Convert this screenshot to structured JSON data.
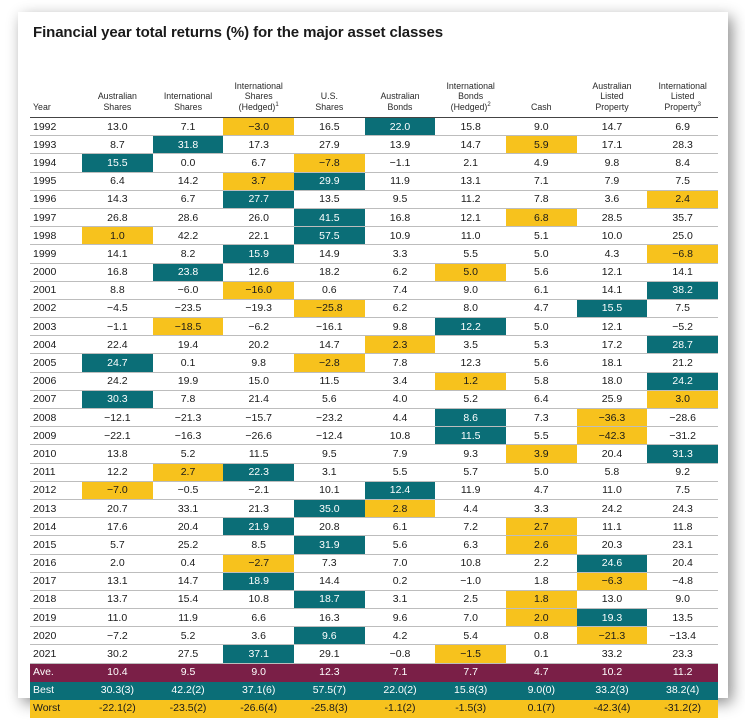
{
  "title": "Financial year total returns (%) for the major asset classes",
  "headers": [
    {
      "lines": [
        "Year"
      ],
      "sup": ""
    },
    {
      "lines": [
        "Australian",
        "Shares"
      ],
      "sup": ""
    },
    {
      "lines": [
        "International",
        "Shares"
      ],
      "sup": ""
    },
    {
      "lines": [
        "International",
        "Shares",
        "(Hedged)"
      ],
      "sup": "1"
    },
    {
      "lines": [
        "U.S.",
        "Shares"
      ],
      "sup": ""
    },
    {
      "lines": [
        "Australian",
        "Bonds"
      ],
      "sup": ""
    },
    {
      "lines": [
        "International",
        "Bonds",
        "(Hedged)"
      ],
      "sup": "2"
    },
    {
      "lines": [
        "Cash"
      ],
      "sup": ""
    },
    {
      "lines": [
        "Australian",
        "Listed",
        "Property"
      ],
      "sup": ""
    },
    {
      "lines": [
        "International",
        "Listed",
        "Property"
      ],
      "sup": "3"
    }
  ],
  "colors": {
    "best": "#0b6e77",
    "worst": "#f7c21d",
    "average": "#7a1f47"
  },
  "rows": [
    {
      "year": "1992",
      "values": [
        "13.0",
        "7.1",
        "−3.0",
        "16.5",
        "22.0",
        "15.8",
        "9.0",
        "14.7",
        "6.9"
      ],
      "best": 4,
      "worst": 2
    },
    {
      "year": "1993",
      "values": [
        "8.7",
        "31.8",
        "17.3",
        "27.9",
        "13.9",
        "14.7",
        "5.9",
        "17.1",
        "28.3"
      ],
      "best": 1,
      "worst": 6
    },
    {
      "year": "1994",
      "values": [
        "15.5",
        "0.0",
        "6.7",
        "−7.8",
        "−1.1",
        "2.1",
        "4.9",
        "9.8",
        "8.4"
      ],
      "best": 0,
      "worst": 3
    },
    {
      "year": "1995",
      "values": [
        "6.4",
        "14.2",
        "3.7",
        "29.9",
        "11.9",
        "13.1",
        "7.1",
        "7.9",
        "7.5"
      ],
      "best": 3,
      "worst": 2
    },
    {
      "year": "1996",
      "values": [
        "14.3",
        "6.7",
        "27.7",
        "13.5",
        "9.5",
        "11.2",
        "7.8",
        "3.6",
        "2.4"
      ],
      "best": 2,
      "worst": 8
    },
    {
      "year": "1997",
      "values": [
        "26.8",
        "28.6",
        "26.0",
        "41.5",
        "16.8",
        "12.1",
        "6.8",
        "28.5",
        "35.7"
      ],
      "best": 3,
      "worst": 6
    },
    {
      "year": "1998",
      "values": [
        "1.0",
        "42.2",
        "22.1",
        "57.5",
        "10.9",
        "11.0",
        "5.1",
        "10.0",
        "25.0"
      ],
      "best": 3,
      "worst": 0
    },
    {
      "year": "1999",
      "values": [
        "14.1",
        "8.2",
        "15.9",
        "14.9",
        "3.3",
        "5.5",
        "5.0",
        "4.3",
        "−6.8"
      ],
      "best": 2,
      "worst": 8
    },
    {
      "year": "2000",
      "values": [
        "16.8",
        "23.8",
        "12.6",
        "18.2",
        "6.2",
        "5.0",
        "5.6",
        "12.1",
        "14.1"
      ],
      "best": 1,
      "worst": 5
    },
    {
      "year": "2001",
      "values": [
        "8.8",
        "−6.0",
        "−16.0",
        "0.6",
        "7.4",
        "9.0",
        "6.1",
        "14.1",
        "38.2"
      ],
      "best": 8,
      "worst": 2
    },
    {
      "year": "2002",
      "values": [
        "−4.5",
        "−23.5",
        "−19.3",
        "−25.8",
        "6.2",
        "8.0",
        "4.7",
        "15.5",
        "7.5"
      ],
      "best": 7,
      "worst": 3
    },
    {
      "year": "2003",
      "values": [
        "−1.1",
        "−18.5",
        "−6.2",
        "−16.1",
        "9.8",
        "12.2",
        "5.0",
        "12.1",
        "−5.2"
      ],
      "best": 5,
      "worst": 1
    },
    {
      "year": "2004",
      "values": [
        "22.4",
        "19.4",
        "20.2",
        "14.7",
        "2.3",
        "3.5",
        "5.3",
        "17.2",
        "28.7"
      ],
      "best": 8,
      "worst": 4
    },
    {
      "year": "2005",
      "values": [
        "24.7",
        "0.1",
        "9.8",
        "−2.8",
        "7.8",
        "12.3",
        "5.6",
        "18.1",
        "21.2"
      ],
      "best": 0,
      "worst": 3
    },
    {
      "year": "2006",
      "values": [
        "24.2",
        "19.9",
        "15.0",
        "11.5",
        "3.4",
        "1.2",
        "5.8",
        "18.0",
        "24.2"
      ],
      "best": 8,
      "worst": 5
    },
    {
      "year": "2007",
      "values": [
        "30.3",
        "7.8",
        "21.4",
        "5.6",
        "4.0",
        "5.2",
        "6.4",
        "25.9",
        "3.0"
      ],
      "best": 0,
      "worst": 8
    },
    {
      "year": "2008",
      "values": [
        "−12.1",
        "−21.3",
        "−15.7",
        "−23.2",
        "4.4",
        "8.6",
        "7.3",
        "−36.3",
        "−28.6"
      ],
      "best": 5,
      "worst": 7
    },
    {
      "year": "2009",
      "values": [
        "−22.1",
        "−16.3",
        "−26.6",
        "−12.4",
        "10.8",
        "11.5",
        "5.5",
        "−42.3",
        "−31.2"
      ],
      "best": 5,
      "worst": 7
    },
    {
      "year": "2010",
      "values": [
        "13.8",
        "5.2",
        "11.5",
        "9.5",
        "7.9",
        "9.3",
        "3.9",
        "20.4",
        "31.3"
      ],
      "best": 8,
      "worst": 6
    },
    {
      "year": "2011",
      "values": [
        "12.2",
        "2.7",
        "22.3",
        "3.1",
        "5.5",
        "5.7",
        "5.0",
        "5.8",
        "9.2"
      ],
      "best": 2,
      "worst": 1
    },
    {
      "year": "2012",
      "values": [
        "−7.0",
        "−0.5",
        "−2.1",
        "10.1",
        "12.4",
        "11.9",
        "4.7",
        "11.0",
        "7.5"
      ],
      "best": 4,
      "worst": 0
    },
    {
      "year": "2013",
      "values": [
        "20.7",
        "33.1",
        "21.3",
        "35.0",
        "2.8",
        "4.4",
        "3.3",
        "24.2",
        "24.3"
      ],
      "best": 3,
      "worst": 4
    },
    {
      "year": "2014",
      "values": [
        "17.6",
        "20.4",
        "21.9",
        "20.8",
        "6.1",
        "7.2",
        "2.7",
        "11.1",
        "11.8"
      ],
      "best": 2,
      "worst": 6
    },
    {
      "year": "2015",
      "values": [
        "5.7",
        "25.2",
        "8.5",
        "31.9",
        "5.6",
        "6.3",
        "2.6",
        "20.3",
        "23.1"
      ],
      "best": 3,
      "worst": 6
    },
    {
      "year": "2016",
      "values": [
        "2.0",
        "0.4",
        "−2.7",
        "7.3",
        "7.0",
        "10.8",
        "2.2",
        "24.6",
        "20.4"
      ],
      "best": 7,
      "worst": 2
    },
    {
      "year": "2017",
      "values": [
        "13.1",
        "14.7",
        "18.9",
        "14.4",
        "0.2",
        "−1.0",
        "1.8",
        "−6.3",
        "−4.8"
      ],
      "best": 2,
      "worst": 7
    },
    {
      "year": "2018",
      "values": [
        "13.7",
        "15.4",
        "10.8",
        "18.7",
        "3.1",
        "2.5",
        "1.8",
        "13.0",
        "9.0"
      ],
      "best": 3,
      "worst": 6
    },
    {
      "year": "2019",
      "values": [
        "11.0",
        "11.9",
        "6.6",
        "16.3",
        "9.6",
        "7.0",
        "2.0",
        "19.3",
        "13.5"
      ],
      "best": 7,
      "worst": 6
    },
    {
      "year": "2020",
      "values": [
        "−7.2",
        "5.2",
        "3.6",
        "9.6",
        "4.2",
        "5.4",
        "0.8",
        "−21.3",
        "−13.4"
      ],
      "best": 3,
      "worst": 7
    },
    {
      "year": "2021",
      "values": [
        "30.2",
        "27.5",
        "37.1",
        "29.1",
        "−0.8",
        "−1.5",
        "0.1",
        "33.2",
        "23.3"
      ],
      "best": 2,
      "worst": 5
    }
  ],
  "summary": {
    "average": {
      "label": "Ave.",
      "values": [
        "10.4",
        "9.5",
        "9.0",
        "12.3",
        "7.1",
        "7.7",
        "4.7",
        "10.2",
        "11.2"
      ]
    },
    "best": {
      "label": "Best",
      "values": [
        "30.3(3)",
        "42.2(2)",
        "37.1(6)",
        "57.5(7)",
        "22.0(2)",
        "15.8(3)",
        "9.0(0)",
        "33.2(3)",
        "38.2(4)"
      ]
    },
    "worst": {
      "label": "Worst",
      "values": [
        "-22.1(2)",
        "-23.5(2)",
        "-26.6(4)",
        "-25.8(3)",
        "-1.1(2)",
        "-1.5(3)",
        "0.1(7)",
        "-42.3(4)",
        "-31.2(2)"
      ]
    }
  }
}
